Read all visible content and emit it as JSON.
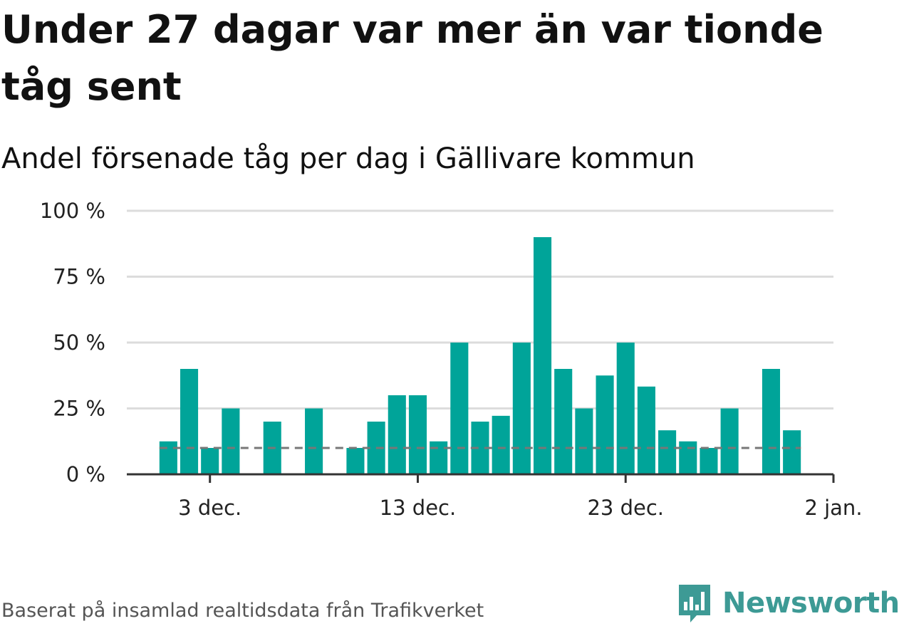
{
  "title": "Under 27 dagar var mer än var tionde tåg sent",
  "subtitle": "Andel försenade tåg per dag i Gällivare kommun",
  "source": "Baserat på insamlad realtidsdata från Trafikverket",
  "brand": "Newsworthy",
  "colors": {
    "bar": "#00a499",
    "grid": "#dcdcdc",
    "reference": "#777777",
    "axis": "#333333",
    "brand": "#3d9a95"
  },
  "chart_data": {
    "type": "bar",
    "x_label_format": "date",
    "ylim": [
      0,
      100
    ],
    "y_ticks": [
      {
        "value": 0,
        "label": "0 %"
      },
      {
        "value": 25,
        "label": "25 %"
      },
      {
        "value": 50,
        "label": "50 %"
      },
      {
        "value": 75,
        "label": "75 %"
      },
      {
        "value": 100,
        "label": "100 %"
      }
    ],
    "x_range": [
      "2023-11-29",
      "2024-01-02"
    ],
    "x_ticks": [
      {
        "date": "2023-12-03",
        "label": "3 dec."
      },
      {
        "date": "2023-12-13",
        "label": "13 dec."
      },
      {
        "date": "2023-12-23",
        "label": "23 dec."
      },
      {
        "date": "2024-01-02",
        "label": "2 jan."
      }
    ],
    "reference_line": 10,
    "grid": true,
    "bars": [
      {
        "date": "2023-12-01",
        "value": 12.5
      },
      {
        "date": "2023-12-02",
        "value": 40
      },
      {
        "date": "2023-12-03",
        "value": 10
      },
      {
        "date": "2023-12-04",
        "value": 25
      },
      {
        "date": "2023-12-05",
        "value": 0
      },
      {
        "date": "2023-12-06",
        "value": 20
      },
      {
        "date": "2023-12-07",
        "value": 0
      },
      {
        "date": "2023-12-08",
        "value": 25
      },
      {
        "date": "2023-12-09",
        "value": 0
      },
      {
        "date": "2023-12-10",
        "value": 10
      },
      {
        "date": "2023-12-11",
        "value": 20
      },
      {
        "date": "2023-12-12",
        "value": 30
      },
      {
        "date": "2023-12-13",
        "value": 30
      },
      {
        "date": "2023-12-14",
        "value": 12.5
      },
      {
        "date": "2023-12-15",
        "value": 50
      },
      {
        "date": "2023-12-16",
        "value": 20
      },
      {
        "date": "2023-12-17",
        "value": 22.2
      },
      {
        "date": "2023-12-18",
        "value": 50
      },
      {
        "date": "2023-12-19",
        "value": 90
      },
      {
        "date": "2023-12-20",
        "value": 40
      },
      {
        "date": "2023-12-21",
        "value": 25
      },
      {
        "date": "2023-12-22",
        "value": 37.5
      },
      {
        "date": "2023-12-23",
        "value": 50
      },
      {
        "date": "2023-12-24",
        "value": 33.3
      },
      {
        "date": "2023-12-25",
        "value": 16.7
      },
      {
        "date": "2023-12-26",
        "value": 12.5
      },
      {
        "date": "2023-12-27",
        "value": 10
      },
      {
        "date": "2023-12-28",
        "value": 25
      },
      {
        "date": "2023-12-29",
        "value": 0
      },
      {
        "date": "2023-12-30",
        "value": 40
      },
      {
        "date": "2023-12-31",
        "value": 16.7
      }
    ]
  }
}
